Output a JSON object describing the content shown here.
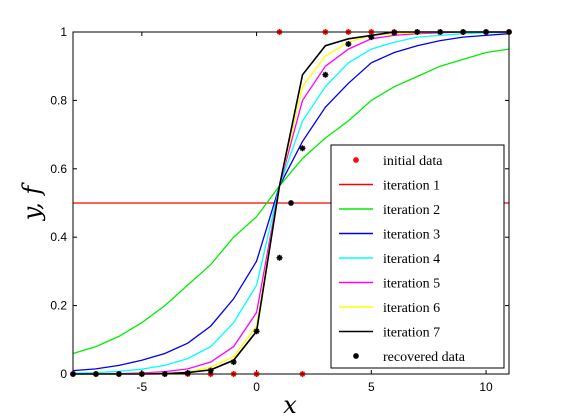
{
  "chart_data": {
    "type": "line",
    "xlabel": "x",
    "ylabel": "y, f",
    "xlim": [
      -8,
      11
    ],
    "ylim": [
      0,
      1
    ],
    "xticks": [
      -5,
      0,
      5,
      10
    ],
    "yticks": [
      0,
      0.2,
      0.4,
      0.6,
      0.8,
      1
    ],
    "xtick_labels": [
      "-5",
      "0",
      "5",
      "10"
    ],
    "ytick_labels": [
      "0",
      "0.2",
      "0.4",
      "0.6",
      "0.8",
      "1"
    ],
    "grid": false,
    "legend_position": "bottom-right",
    "x": [
      -8,
      -7,
      -6,
      -5,
      -4,
      -3,
      -2,
      -1,
      0,
      1,
      2,
      3,
      4,
      5,
      6,
      7,
      8,
      9,
      10,
      11
    ],
    "initial_data": {
      "name": "initial data",
      "color": "#ff0000",
      "x": [
        -8,
        -7,
        -6,
        -5,
        -4,
        -3,
        -2,
        -1,
        0,
        1,
        2,
        3,
        4,
        5,
        6,
        7,
        8,
        9,
        10,
        11
      ],
      "y": [
        0,
        0,
        0,
        0,
        0,
        0,
        0,
        0,
        0,
        1,
        0,
        1,
        1,
        1,
        1,
        1,
        1,
        1,
        1,
        1
      ]
    },
    "series": [
      {
        "name": "iteration 1",
        "color": "#ff0000",
        "values": [
          0.5,
          0.5,
          0.5,
          0.5,
          0.5,
          0.5,
          0.5,
          0.5,
          0.5,
          0.5,
          0.5,
          0.5,
          0.5,
          0.5,
          0.5,
          0.5,
          0.5,
          0.5,
          0.5,
          0.5
        ]
      },
      {
        "name": "iteration 2",
        "color": "#00ee00",
        "values": [
          0.06,
          0.08,
          0.11,
          0.15,
          0.2,
          0.26,
          0.32,
          0.4,
          0.46,
          0.55,
          0.63,
          0.69,
          0.74,
          0.8,
          0.84,
          0.87,
          0.9,
          0.92,
          0.94,
          0.95
        ]
      },
      {
        "name": "iteration 3",
        "color": "#0000ee",
        "values": [
          0.01,
          0.015,
          0.025,
          0.04,
          0.06,
          0.09,
          0.14,
          0.22,
          0.33,
          0.55,
          0.68,
          0.78,
          0.85,
          0.91,
          0.94,
          0.96,
          0.975,
          0.985,
          0.99,
          0.995
        ]
      },
      {
        "name": "iteration 4",
        "color": "#00ffff",
        "values": [
          0.002,
          0.004,
          0.008,
          0.014,
          0.025,
          0.045,
          0.08,
          0.15,
          0.26,
          0.55,
          0.74,
          0.84,
          0.91,
          0.95,
          0.97,
          0.985,
          0.99,
          0.995,
          0.998,
          0.999
        ]
      },
      {
        "name": "iteration 5",
        "color": "#ff00ff",
        "values": [
          0.0,
          0.0,
          0.001,
          0.003,
          0.007,
          0.015,
          0.035,
          0.08,
          0.18,
          0.55,
          0.8,
          0.9,
          0.95,
          0.98,
          0.99,
          0.995,
          0.998,
          1.0,
          1.0,
          1.0
        ]
      },
      {
        "name": "iteration 6",
        "color": "#ffff00",
        "values": [
          0.0,
          0.0,
          0.0,
          0.001,
          0.002,
          0.006,
          0.02,
          0.05,
          0.14,
          0.55,
          0.84,
          0.93,
          0.97,
          0.99,
          0.995,
          0.998,
          1.0,
          1.0,
          1.0,
          1.0
        ]
      },
      {
        "name": "iteration 7",
        "color": "#000000",
        "values": [
          0.0,
          0.0,
          0.0,
          0.0,
          0.001,
          0.004,
          0.012,
          0.04,
          0.125,
          0.55,
          0.875,
          0.96,
          0.98,
          0.99,
          1.0,
          1.0,
          1.0,
          1.0,
          1.0,
          1.0
        ]
      }
    ],
    "recovered_data": {
      "name": "recovered data",
      "color": "#000000",
      "x": [
        -8,
        -7,
        -6,
        -5,
        -4,
        -3,
        -2,
        -1,
        0,
        1,
        1.5,
        2,
        3,
        4,
        5,
        6,
        7,
        8,
        9,
        10,
        11
      ],
      "y": [
        0,
        0,
        0,
        0,
        0,
        0.003,
        0.01,
        0.035,
        0.125,
        0.34,
        0.5,
        0.66,
        0.875,
        0.965,
        0.985,
        0.998,
        1.0,
        1.0,
        1.0,
        1.0,
        1.0
      ]
    }
  }
}
